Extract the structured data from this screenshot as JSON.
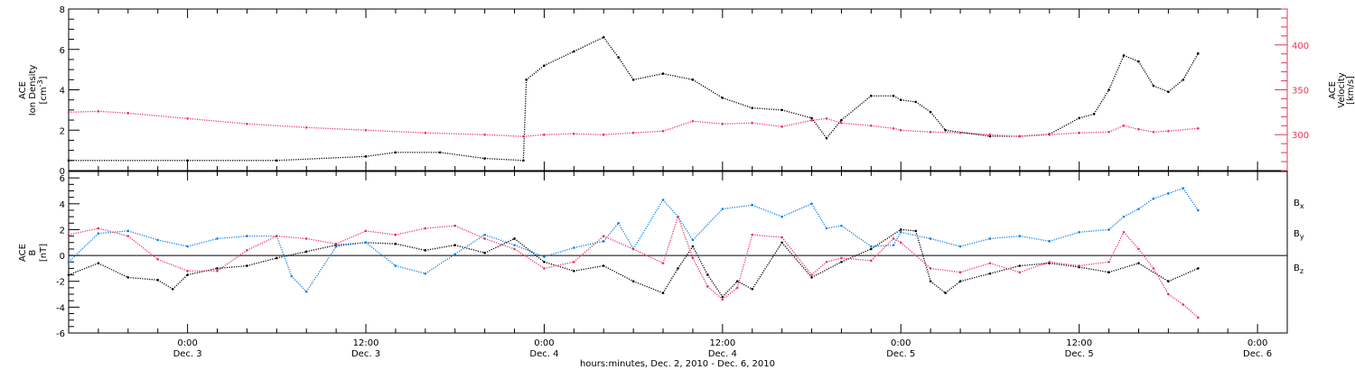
{
  "colors": {
    "black": "#000000",
    "red": "#e8345c",
    "blue": "#0a7ee8"
  },
  "chart_data": [
    {
      "type": "scatter",
      "panel": "top",
      "left_axis": {
        "label_line1": "ACE",
        "label_line2": "Ion Density",
        "label_line3": "[cm",
        "label_sup": "-3",
        "label_close": "]",
        "ylim": [
          0,
          8
        ],
        "ticks": [
          "0",
          "2",
          "4",
          "6",
          "8"
        ]
      },
      "right_axis": {
        "label_line1": "ACE",
        "label_line2": "Velocity",
        "label_line3": "[km/s]",
        "ylim": [
          260,
          440
        ],
        "ticks": [
          "300",
          "350",
          "400"
        ],
        "color": "#e8345c"
      },
      "series": [
        {
          "color": "#000000",
          "axis": "left",
          "points": [
            [
              -8,
              0.5
            ],
            [
              0,
              0.5
            ],
            [
              6,
              0.5
            ],
            [
              12,
              0.7
            ],
            [
              14,
              0.9
            ],
            [
              17,
              0.9
            ],
            [
              20,
              0.6
            ],
            [
              22.6,
              0.5
            ],
            [
              22.8,
              4.5
            ],
            [
              24,
              5.2
            ],
            [
              26,
              5.9
            ],
            [
              28,
              6.6
            ],
            [
              29,
              5.6
            ],
            [
              30,
              4.5
            ],
            [
              32,
              4.8
            ],
            [
              34,
              4.5
            ],
            [
              36,
              3.6
            ],
            [
              38,
              3.1
            ],
            [
              40,
              3.0
            ],
            [
              42,
              2.6
            ],
            [
              43,
              1.6
            ],
            [
              44,
              2.5
            ],
            [
              46,
              3.7
            ],
            [
              47.5,
              3.7
            ],
            [
              48,
              3.5
            ],
            [
              49,
              3.4
            ],
            [
              50,
              2.9
            ],
            [
              51,
              2.0
            ],
            [
              54,
              1.7
            ],
            [
              56,
              1.7
            ],
            [
              58,
              1.8
            ],
            [
              60,
              2.6
            ],
            [
              61,
              2.8
            ],
            [
              62,
              4.0
            ],
            [
              63,
              5.7
            ],
            [
              64,
              5.4
            ],
            [
              65,
              4.2
            ],
            [
              66,
              3.9
            ],
            [
              67,
              4.5
            ],
            [
              68,
              5.8
            ]
          ]
        },
        {
          "color": "#e8345c",
          "axis": "right",
          "points": [
            [
              -8,
              325
            ],
            [
              -6,
              326
            ],
            [
              -4,
              324
            ],
            [
              0,
              318
            ],
            [
              4,
              312
            ],
            [
              8,
              308
            ],
            [
              12,
              305
            ],
            [
              16,
              302
            ],
            [
              20,
              300
            ],
            [
              22.6,
              298
            ],
            [
              24,
              300
            ],
            [
              26,
              301
            ],
            [
              28,
              300
            ],
            [
              30,
              302
            ],
            [
              32,
              304
            ],
            [
              34,
              315
            ],
            [
              36,
              312
            ],
            [
              38,
              313
            ],
            [
              40,
              309
            ],
            [
              42,
              316
            ],
            [
              43,
              318
            ],
            [
              44,
              313
            ],
            [
              46,
              310
            ],
            [
              47.5,
              307
            ],
            [
              48,
              305
            ],
            [
              50,
              303
            ],
            [
              52,
              302
            ],
            [
              54,
              300
            ],
            [
              56,
              298
            ],
            [
              58,
              300
            ],
            [
              60,
              302
            ],
            [
              62,
              303
            ],
            [
              63,
              310
            ],
            [
              64,
              306
            ],
            [
              65,
              303
            ],
            [
              66,
              304
            ],
            [
              68,
              307
            ]
          ]
        }
      ]
    },
    {
      "type": "scatter",
      "panel": "bottom",
      "left_axis": {
        "label_line1": "ACE",
        "label_line2": "B",
        "label_line3": "[nT]",
        "ylim": [
          -6,
          6.5
        ],
        "ticks": [
          "-6",
          "-4",
          "-2",
          "0",
          "2",
          "4",
          "6"
        ]
      },
      "legend": {
        "placement": "right",
        "entries": [
          {
            "base": "B",
            "sub": "x",
            "color": "#000000"
          },
          {
            "base": "B",
            "sub": "y",
            "color": "#0a7ee8"
          },
          {
            "base": "B",
            "sub": "z",
            "color": "#e8345c"
          }
        ]
      },
      "series": [
        {
          "color": "#000000",
          "points": [
            [
              -8,
              -1.5
            ],
            [
              -6,
              -0.6
            ],
            [
              -4,
              -1.7
            ],
            [
              -2,
              -1.9
            ],
            [
              -1,
              -2.6
            ],
            [
              0,
              -1.5
            ],
            [
              2,
              -1.0
            ],
            [
              4,
              -0.8
            ],
            [
              6,
              -0.2
            ],
            [
              8,
              0.3
            ],
            [
              10,
              0.8
            ],
            [
              12,
              1.0
            ],
            [
              14,
              0.9
            ],
            [
              16,
              0.4
            ],
            [
              18,
              0.8
            ],
            [
              20,
              0.2
            ],
            [
              22,
              1.3
            ],
            [
              24,
              -0.5
            ],
            [
              26,
              -1.2
            ],
            [
              28,
              -0.8
            ],
            [
              30,
              -2.0
            ],
            [
              32,
              -2.9
            ],
            [
              33,
              -1.0
            ],
            [
              34,
              0.7
            ],
            [
              35,
              -1.5
            ],
            [
              36,
              -3.2
            ],
            [
              37,
              -2.0
            ],
            [
              38,
              -2.6
            ],
            [
              40,
              1.0
            ],
            [
              42,
              -1.7
            ],
            [
              44,
              -0.5
            ],
            [
              46,
              0.5
            ],
            [
              48,
              2.0
            ],
            [
              49,
              1.9
            ],
            [
              50,
              -2.0
            ],
            [
              51,
              -2.9
            ],
            [
              52,
              -2.0
            ],
            [
              54,
              -1.4
            ],
            [
              56,
              -0.8
            ],
            [
              58,
              -0.6
            ],
            [
              60,
              -0.9
            ],
            [
              62,
              -1.3
            ],
            [
              64,
              -0.6
            ],
            [
              66,
              -2.0
            ],
            [
              68,
              -1.0
            ]
          ]
        },
        {
          "color": "#0a7ee8",
          "points": [
            [
              -8,
              -0.5
            ],
            [
              -6,
              1.7
            ],
            [
              -4,
              1.9
            ],
            [
              -2,
              1.2
            ],
            [
              0,
              0.7
            ],
            [
              2,
              1.3
            ],
            [
              4,
              1.5
            ],
            [
              6,
              1.5
            ],
            [
              7,
              -1.6
            ],
            [
              8,
              -2.8
            ],
            [
              10,
              0.7
            ],
            [
              12,
              1.0
            ],
            [
              14,
              -0.8
            ],
            [
              16,
              -1.4
            ],
            [
              18,
              0.1
            ],
            [
              20,
              1.6
            ],
            [
              22,
              0.8
            ],
            [
              24,
              -0.1
            ],
            [
              26,
              0.6
            ],
            [
              28,
              1.1
            ],
            [
              29,
              2.5
            ],
            [
              30,
              0.5
            ],
            [
              32,
              4.3
            ],
            [
              33,
              3.0
            ],
            [
              34,
              1.2
            ],
            [
              36,
              3.6
            ],
            [
              38,
              3.9
            ],
            [
              40,
              3.0
            ],
            [
              42,
              4.0
            ],
            [
              43,
              2.1
            ],
            [
              44,
              2.3
            ],
            [
              46,
              0.7
            ],
            [
              47.5,
              0.8
            ],
            [
              48,
              1.8
            ],
            [
              50,
              1.3
            ],
            [
              52,
              0.7
            ],
            [
              54,
              1.3
            ],
            [
              56,
              1.5
            ],
            [
              58,
              1.1
            ],
            [
              60,
              1.8
            ],
            [
              62,
              2.0
            ],
            [
              63,
              3.0
            ],
            [
              64,
              3.6
            ],
            [
              65,
              4.4
            ],
            [
              66,
              4.8
            ],
            [
              67,
              5.2
            ],
            [
              68,
              3.5
            ]
          ]
        },
        {
          "color": "#e8345c",
          "points": [
            [
              -8,
              1.6
            ],
            [
              -6,
              2.1
            ],
            [
              -4,
              1.5
            ],
            [
              -2,
              -0.3
            ],
            [
              0,
              -1.2
            ],
            [
              2,
              -1.2
            ],
            [
              4,
              0.4
            ],
            [
              6,
              1.5
            ],
            [
              8,
              1.3
            ],
            [
              10,
              0.9
            ],
            [
              12,
              1.9
            ],
            [
              14,
              1.6
            ],
            [
              16,
              2.1
            ],
            [
              18,
              2.3
            ],
            [
              20,
              1.3
            ],
            [
              22,
              0.5
            ],
            [
              24,
              -1.0
            ],
            [
              26,
              -0.5
            ],
            [
              28,
              1.5
            ],
            [
              30,
              0.5
            ],
            [
              32,
              -0.6
            ],
            [
              33,
              3.0
            ],
            [
              34,
              -0.2
            ],
            [
              35,
              -2.4
            ],
            [
              36,
              -3.4
            ],
            [
              37,
              -2.5
            ],
            [
              38,
              1.6
            ],
            [
              40,
              1.4
            ],
            [
              42,
              -1.5
            ],
            [
              43,
              -0.5
            ],
            [
              44,
              -0.2
            ],
            [
              46,
              -0.4
            ],
            [
              47.5,
              1.3
            ],
            [
              48,
              1.0
            ],
            [
              50,
              -1.0
            ],
            [
              52,
              -1.3
            ],
            [
              54,
              -0.6
            ],
            [
              56,
              -1.3
            ],
            [
              58,
              -0.5
            ],
            [
              60,
              -0.8
            ],
            [
              62,
              -0.5
            ],
            [
              63,
              1.8
            ],
            [
              64,
              0.5
            ],
            [
              65,
              -1.0
            ],
            [
              66,
              -3.0
            ],
            [
              67,
              -3.8
            ],
            [
              68,
              -4.8
            ]
          ]
        }
      ]
    }
  ],
  "x_axis": {
    "xlim": [
      -8,
      74
    ],
    "ticks": [
      {
        "hour": 0,
        "time": "0:00",
        "day": "Dec. 3"
      },
      {
        "hour": 12,
        "time": "12:00",
        "day": "Dec. 3"
      },
      {
        "hour": 24,
        "time": "0:00",
        "day": "Dec. 4"
      },
      {
        "hour": 36,
        "time": "12:00",
        "day": "Dec. 4"
      },
      {
        "hour": 48,
        "time": "0:00",
        "day": "Dec. 5"
      },
      {
        "hour": 60,
        "time": "12:00",
        "day": "Dec. 5"
      },
      {
        "hour": 72,
        "time": "0:00",
        "day": "Dec. 6"
      }
    ],
    "title": "hours:minutes, Dec.  2, 2010 - Dec.  6, 2010"
  }
}
